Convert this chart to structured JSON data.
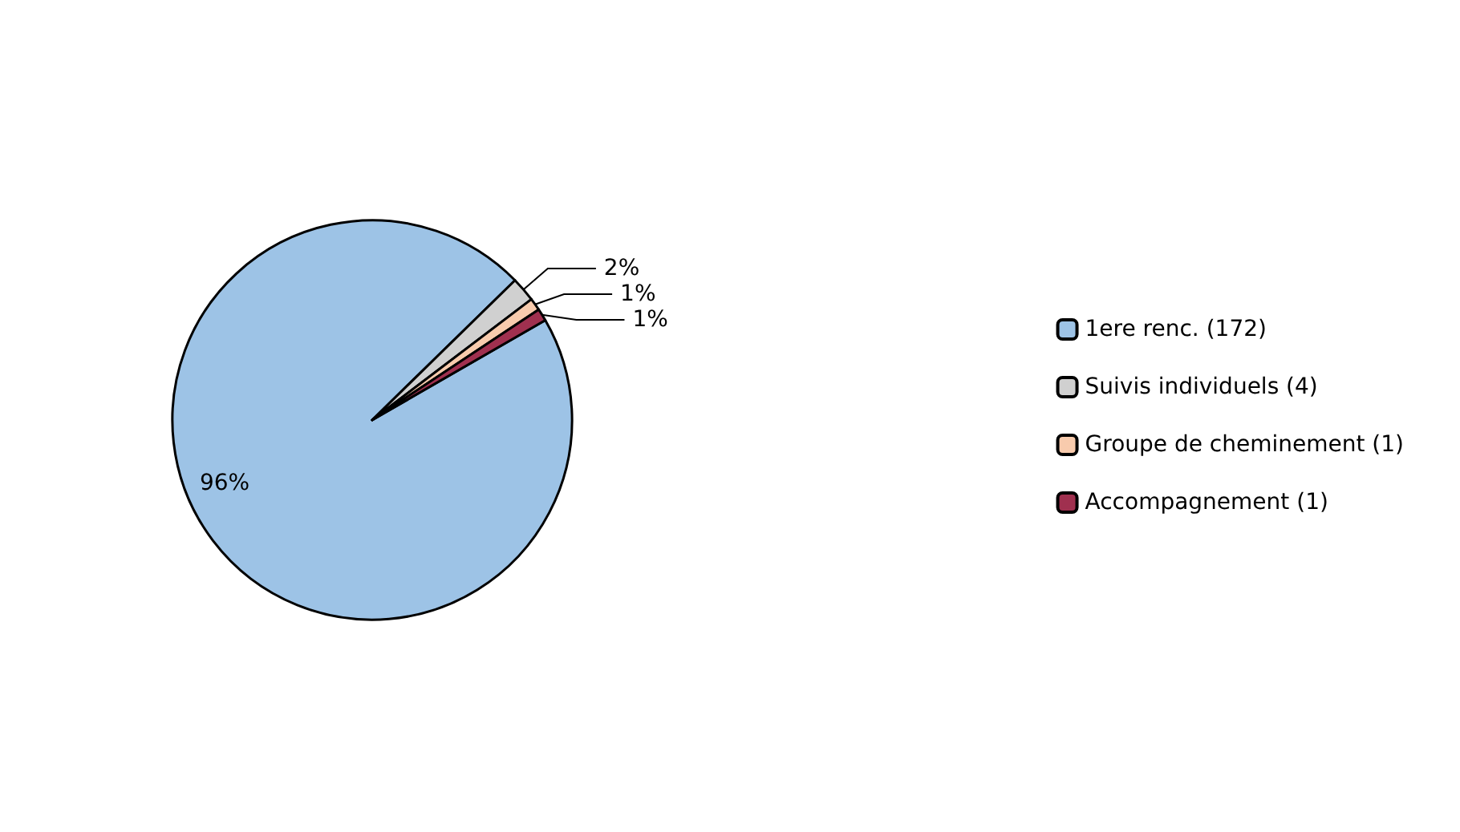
{
  "chart_data": {
    "type": "pie",
    "categories": [
      "1ere renc. (172)",
      "Suivis individuels (4)",
      "Groupe de cheminement (1)",
      "Accompagnement (1)"
    ],
    "values": [
      96,
      2,
      1,
      1
    ],
    "value_labels": [
      "96%",
      "2%",
      "1%",
      "1%"
    ],
    "colors": [
      "#9dc3e6",
      "#d0d0d0",
      "#f8cbad",
      "#a0304f"
    ],
    "legend": "right"
  }
}
